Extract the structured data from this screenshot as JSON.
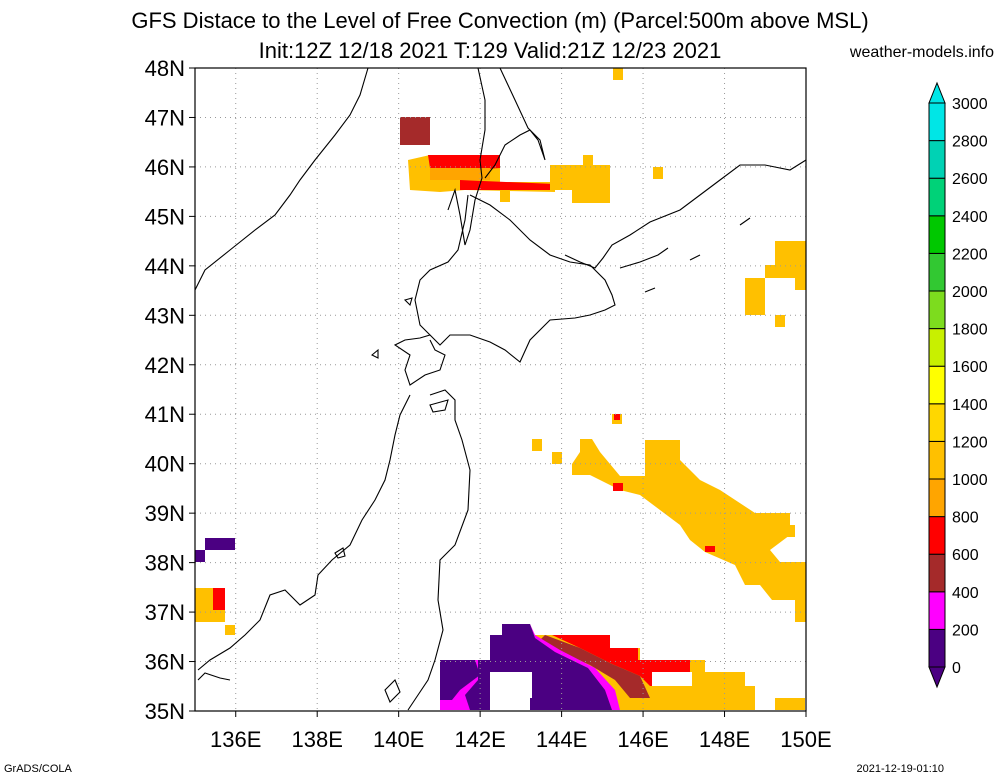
{
  "title_line1": "GFS Distace to the Level of Free Convection (m) (Parcel:500m above MSL)",
  "title_line2": "Init:12Z 12/18 2021 T:129 Valid:21Z 12/23 2021",
  "site": "weather-models.info",
  "footer_left": "GrADS/COLA",
  "footer_right": "2021-12-19-01:10",
  "map": {
    "lon_labels": [
      "136E",
      "138E",
      "140E",
      "142E",
      "144E",
      "146E",
      "148E",
      "150E"
    ],
    "lat_labels": [
      "35N",
      "36N",
      "37N",
      "38N",
      "39N",
      "40N",
      "41N",
      "42N",
      "43N",
      "44N",
      "45N",
      "46N",
      "47N",
      "48N"
    ]
  },
  "colorbar": {
    "labels": [
      "0",
      "200",
      "400",
      "600",
      "800",
      "1000",
      "1200",
      "1400",
      "1600",
      "1800",
      "2000",
      "2200",
      "2400",
      "2600",
      "2800",
      "3000"
    ],
    "colors": [
      "#4b0082",
      "#ff00ff",
      "#a52a2a",
      "#ff0000",
      "#ffa500",
      "#ffc000",
      "#ffd700",
      "#ffff00",
      "#c8f000",
      "#7ddc1e",
      "#32c832",
      "#00c800",
      "#00d278",
      "#00d2b4",
      "#00e6e6"
    ]
  },
  "palette": {
    "purple": "#4b0082",
    "magenta": "#ff00ff",
    "brown": "#a52a2a",
    "red": "#ff0000",
    "orange": "#ffa500",
    "gold": "#ffc000"
  }
}
